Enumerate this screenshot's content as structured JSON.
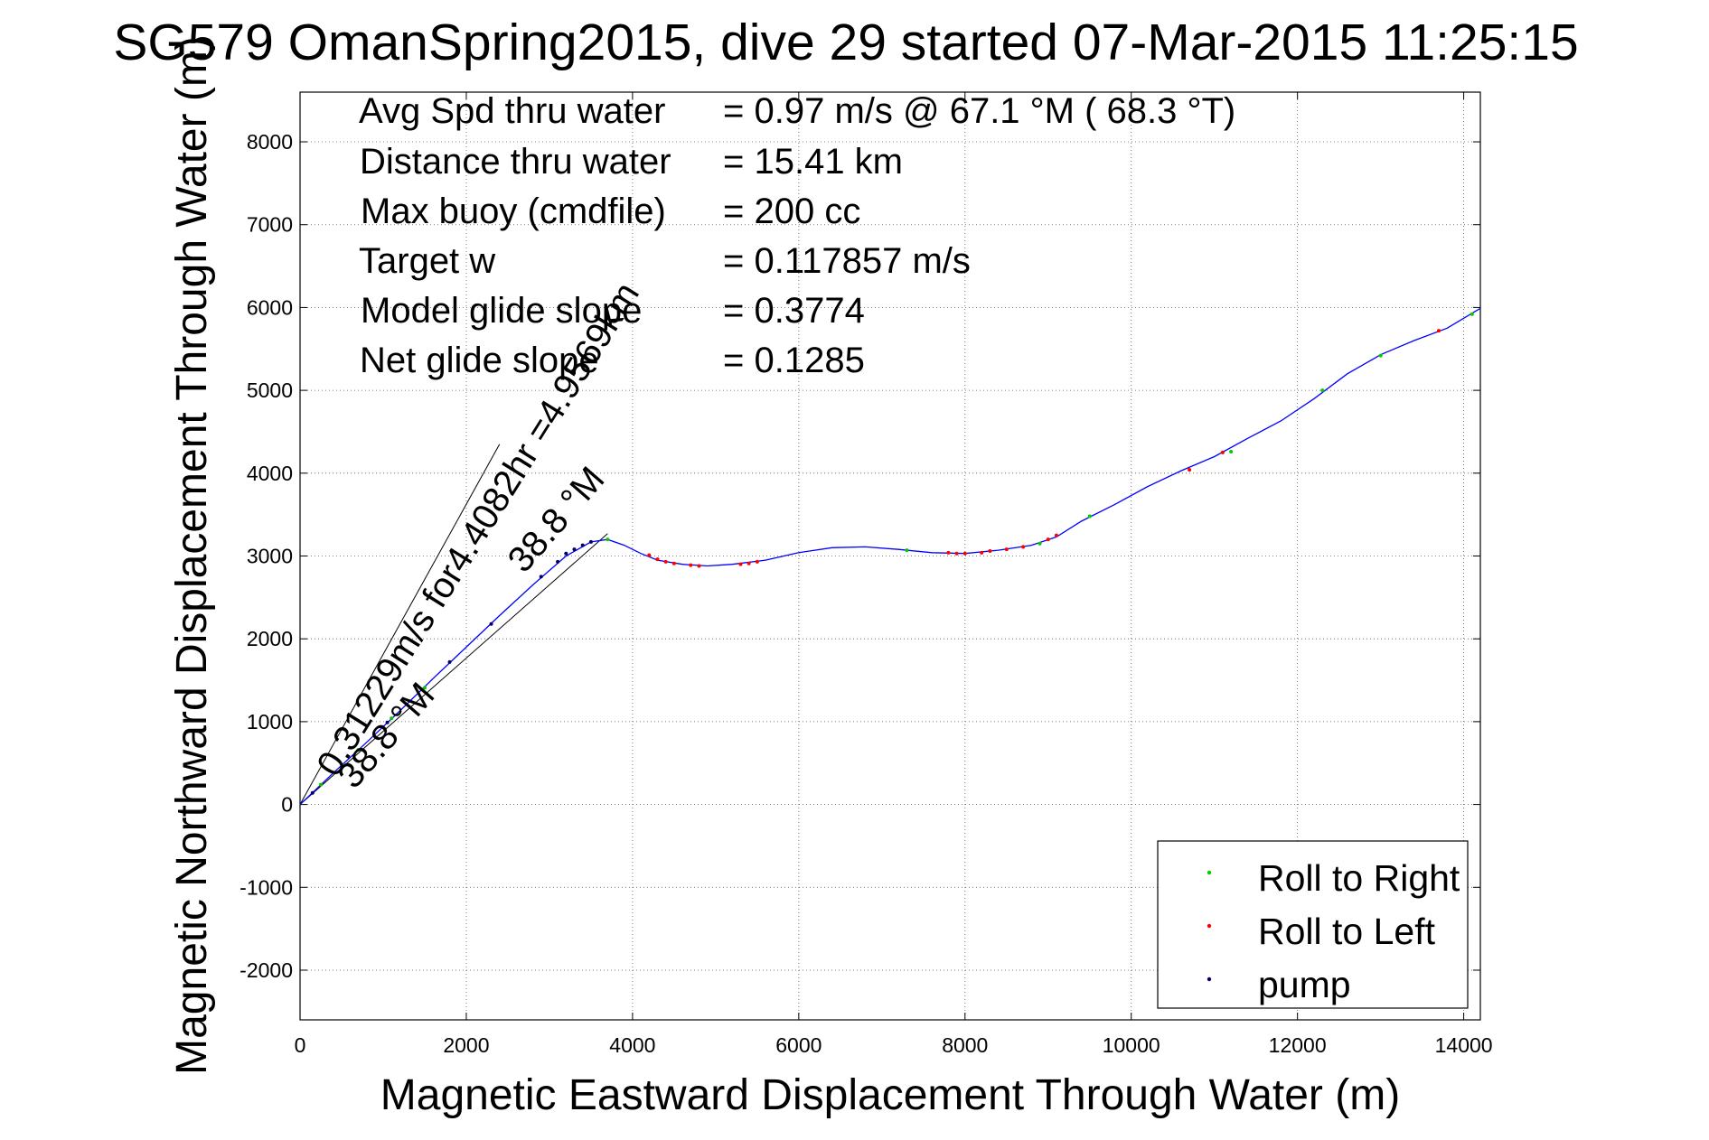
{
  "chart_data": {
    "type": "line",
    "title": "SG579 OmanSpring2015, dive 29 started 07-Mar-2015 11:25:15",
    "xlabel": "Magnetic Eastward Displacement Through Water (m)",
    "ylabel": "Magnetic Northward Displacement Through Water (m)",
    "xlim": [
      0,
      14200
    ],
    "ylim": [
      -2600,
      8600
    ],
    "xticks": [
      0,
      2000,
      4000,
      6000,
      8000,
      10000,
      12000,
      14000
    ],
    "yticks": [
      -2000,
      -1000,
      0,
      1000,
      2000,
      3000,
      4000,
      5000,
      6000,
      7000,
      8000
    ],
    "grid": true,
    "stats": [
      {
        "label": "Avg Spd thru water",
        "value": "=  0.97 m/s @  67.1 °M ( 68.3 °T)"
      },
      {
        "label": "Distance thru water",
        "value": "= 15.41 km"
      },
      {
        "label": "Max buoy (cmdfile)",
        "value": "= 200 cc"
      },
      {
        "label": "Target w",
        "value": "= 0.117857 m/s"
      },
      {
        "label": "Model glide slope",
        "value": "= 0.3774"
      },
      {
        "label": "Net glide slope",
        "value": "= 0.1285"
      }
    ],
    "annotations": [
      {
        "text": "0.31229m/s for4.4082hr =4.9569km"
      },
      {
        "text": "38.8 °M"
      },
      {
        "text": "38.8 °M"
      }
    ],
    "reference_lines": [
      {
        "name": "upper",
        "x": [
          0,
          2400
        ],
        "y": [
          0,
          4350
        ]
      },
      {
        "name": "lower",
        "x": [
          0,
          3700
        ],
        "y": [
          0,
          3270
        ]
      }
    ],
    "series": [
      {
        "style": "line",
        "color": "#0000ff",
        "x": [
          0,
          400,
          800,
          1200,
          1600,
          2000,
          2400,
          2800,
          3200,
          3500,
          3700,
          3900,
          4100,
          4300,
          4600,
          4900,
          5200,
          5600,
          6000,
          6400,
          6800,
          7200,
          7600,
          8000,
          8400,
          8800,
          9100,
          9400,
          9800,
          10200,
          10600,
          11000,
          11400,
          11800,
          12200,
          12600,
          13000,
          13400,
          13800,
          14000,
          14200
        ],
        "y": [
          0,
          380,
          750,
          1130,
          1520,
          1900,
          2280,
          2650,
          3000,
          3170,
          3200,
          3130,
          3030,
          2950,
          2900,
          2880,
          2900,
          2950,
          3040,
          3100,
          3110,
          3080,
          3040,
          3030,
          3070,
          3130,
          3230,
          3420,
          3620,
          3840,
          4030,
          4200,
          4420,
          4630,
          4900,
          5200,
          5430,
          5600,
          5750,
          5870,
          5990
        ]
      },
      {
        "name": "Roll to Right",
        "style": "points",
        "color": "#00cc00",
        "x": [
          250,
          700,
          1100,
          1500,
          3700,
          7300,
          8900,
          9500,
          11200,
          12300,
          13000,
          14100
        ],
        "y": [
          240,
          660,
          1040,
          1410,
          3200,
          3070,
          3150,
          3480,
          4260,
          5000,
          5420,
          5920
        ]
      },
      {
        "name": "Roll to Left",
        "style": "points",
        "color": "#ff0000",
        "x": [
          4200,
          4300,
          4400,
          4500,
          4700,
          4800,
          5300,
          5400,
          5500,
          7800,
          7900,
          8000,
          8200,
          8300,
          8500,
          8700,
          9000,
          9100,
          10700,
          11100,
          13700
        ],
        "y": [
          3010,
          2960,
          2930,
          2910,
          2890,
          2880,
          2900,
          2910,
          2930,
          3040,
          3030,
          3030,
          3040,
          3060,
          3080,
          3110,
          3200,
          3250,
          4040,
          4250,
          5720
        ]
      },
      {
        "name": "pump",
        "style": "points",
        "color": "#000066",
        "x": [
          150,
          1050,
          1800,
          2300,
          2900,
          3100,
          3200,
          3300,
          3400,
          3500
        ],
        "y": [
          140,
          990,
          1720,
          2180,
          2750,
          2930,
          3030,
          3080,
          3130,
          3170
        ]
      }
    ],
    "legend": {
      "position": "bottom-right",
      "entries": [
        {
          "label": "Roll to Right",
          "color": "#00cc00"
        },
        {
          "label": "Roll to Left",
          "color": "#ff0000"
        },
        {
          "label": "pump",
          "color": "#000066"
        }
      ]
    }
  }
}
